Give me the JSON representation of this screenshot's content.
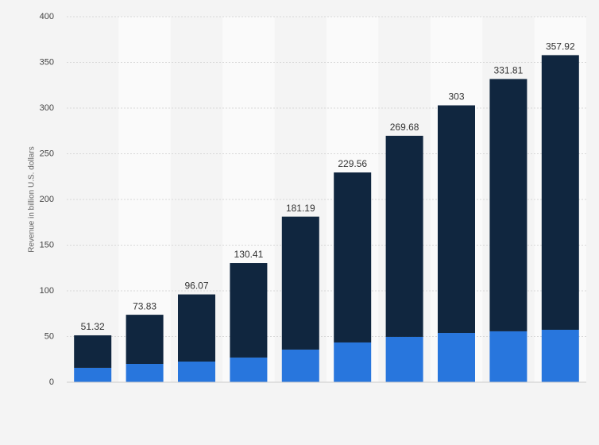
{
  "chart_data": {
    "type": "stacked-bar",
    "y_axis_label": "Revenue in billion U.S. dollars",
    "categories": [
      null,
      null,
      null,
      null,
      null,
      null,
      null,
      null,
      null,
      null
    ],
    "series": [
      {
        "color": "#2876dd",
        "values": [
          15.7,
          20,
          22.6,
          27,
          35.7,
          43.5,
          49.6,
          53.9,
          55.7,
          57.4
        ]
      },
      {
        "color": "#10263f",
        "values": [
          35.62,
          53.83,
          73.47,
          103.41,
          145.49,
          186.06,
          220.08,
          249.1,
          276.11,
          300.52
        ]
      }
    ],
    "totals": [
      51.32,
      73.83,
      96.07,
      130.41,
      181.19,
      229.56,
      269.68,
      303,
      331.81,
      357.92
    ],
    "ylim": [
      0,
      400
    ],
    "yticks": [
      0,
      50,
      100,
      150,
      200,
      250,
      300,
      350,
      400
    ],
    "grid": true
  }
}
